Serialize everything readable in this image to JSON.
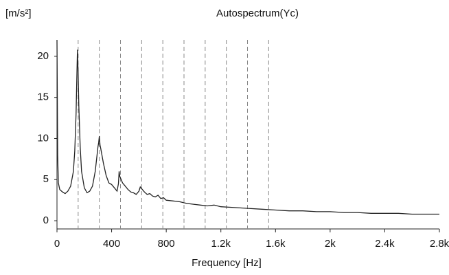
{
  "chart_data": {
    "type": "line",
    "title": "Autospectrum(Yc)",
    "y_label": "[m/s²]",
    "x_label": "Frequency [Hz]",
    "x": [
      0,
      5,
      10,
      20,
      40,
      60,
      80,
      100,
      120,
      130,
      140,
      145,
      150,
      155,
      160,
      170,
      180,
      200,
      220,
      240,
      260,
      280,
      290,
      300,
      305,
      310,
      315,
      320,
      340,
      360,
      380,
      400,
      420,
      440,
      450,
      455,
      460,
      470,
      480,
      500,
      520,
      540,
      560,
      580,
      600,
      610,
      620,
      640,
      660,
      680,
      700,
      720,
      740,
      760,
      780,
      800,
      850,
      900,
      950,
      1000,
      1050,
      1100,
      1150,
      1200,
      1300,
      1400,
      1500,
      1600,
      1700,
      1800,
      1900,
      2000,
      2100,
      2200,
      2300,
      2400,
      2500,
      2600,
      2700,
      2800
    ],
    "series": [
      {
        "color": "#222222",
        "values": [
          22,
          8,
          4.6,
          3.8,
          3.5,
          3.3,
          3.6,
          4.2,
          6,
          8.5,
          13,
          17,
          20.8,
          18,
          14,
          9,
          6,
          4,
          3.4,
          3.6,
          4.2,
          6,
          7.5,
          9,
          9.5,
          10.3,
          9.2,
          8.8,
          7,
          5.5,
          4.6,
          4.4,
          4,
          3.6,
          4.5,
          6,
          5.4,
          5,
          4.6,
          4.2,
          3.8,
          3.5,
          3.4,
          3.2,
          3.6,
          4.1,
          3.9,
          3.5,
          3.2,
          3.3,
          3,
          2.9,
          3.1,
          2.7,
          2.8,
          2.5,
          2.4,
          2.3,
          2.1,
          2.0,
          1.9,
          1.8,
          1.9,
          1.7,
          1.6,
          1.5,
          1.4,
          1.3,
          1.2,
          1.2,
          1.1,
          1.1,
          1.0,
          1.0,
          0.9,
          0.9,
          0.9,
          0.8,
          0.8,
          0.8
        ]
      }
    ],
    "harmonics": [
      155,
      310,
      465,
      620,
      775,
      930,
      1085,
      1240,
      1395,
      1550
    ],
    "harmonic_color": "#888888",
    "xlim": [
      0,
      2800
    ],
    "ylim": [
      -1,
      22
    ],
    "xticks": [
      0,
      400,
      800,
      {
        "value": 1200,
        "label": "1.2k"
      },
      {
        "value": 1600,
        "label": "1.6k"
      },
      {
        "value": 2000,
        "label": "2k"
      },
      {
        "value": 2400,
        "label": "2.4k"
      },
      {
        "value": 2800,
        "label": "2.8k"
      }
    ],
    "yticks": [
      0,
      5,
      10,
      15,
      20
    ],
    "grid": false
  }
}
